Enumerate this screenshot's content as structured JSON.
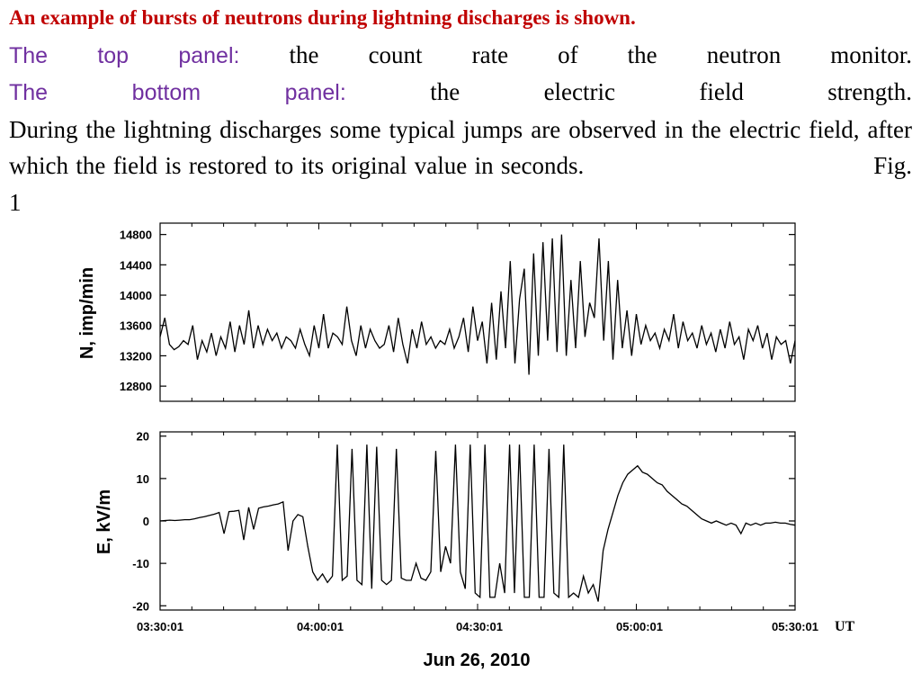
{
  "caption": {
    "line1": "An example of bursts of neutrons during lightning discharges is shown.",
    "top_label": "The top panel:",
    "top_text": "the count rate of the neutron monitor.",
    "bottom_label": "The bottom panel:",
    "bottom_text": "the electric field strength.",
    "body": "During the lightning discharges some typical jumps are observed in the electric field, after which the field is restored to its original value in seconds.",
    "fig_label": "Fig. 1"
  },
  "colors": {
    "heading": "#c00000",
    "panel_label": "#7030a0",
    "line": "#000000"
  },
  "chart_data": [
    {
      "type": "line",
      "ylabel": "N, imp/min",
      "ylim": [
        12600,
        14950
      ],
      "yticks": [
        12800,
        13200,
        13600,
        14000,
        14400,
        14800
      ],
      "x_range": [
        "03:30:01",
        "05:33:00"
      ],
      "series": [
        {
          "values": [
            13450,
            13700,
            13350,
            13280,
            13320,
            13400,
            13350,
            13600,
            13150,
            13400,
            13250,
            13500,
            13200,
            13450,
            13300,
            13650,
            13250,
            13600,
            13350,
            13800,
            13300,
            13600,
            13350,
            13550,
            13400,
            13500,
            13300,
            13450,
            13400,
            13300,
            13550,
            13350,
            13200,
            13600,
            13300,
            13750,
            13300,
            13500,
            13450,
            13350,
            13850,
            13400,
            13200,
            13600,
            13300,
            13550,
            13400,
            13300,
            13350,
            13600,
            13250,
            13700,
            13350,
            13100,
            13550,
            13300,
            13650,
            13350,
            13450,
            13300,
            13400,
            13350,
            13550,
            13300,
            13450,
            13700,
            13250,
            13850,
            13400,
            13650,
            13100,
            13900,
            13150,
            14050,
            13300,
            14450,
            13100,
            13950,
            14350,
            12950,
            14550,
            13200,
            14700,
            13400,
            14750,
            13250,
            14800,
            13200,
            14200,
            13300,
            14450,
            13450,
            13900,
            13700,
            14750,
            13400,
            14450,
            13150,
            14200,
            13300,
            13800,
            13200,
            13750,
            13350,
            13600,
            13400,
            13500,
            13300,
            13550,
            13400,
            13750,
            13300,
            13650,
            13400,
            13500,
            13300,
            13600,
            13350,
            13500,
            13250,
            13550,
            13300,
            13650,
            13350,
            13450,
            13150,
            13550,
            13400,
            13600,
            13300,
            13500,
            13150,
            13450,
            13350,
            13400,
            13100,
            13400
          ]
        }
      ]
    },
    {
      "type": "line",
      "ylabel": "E, kV/m",
      "ylim": [
        -21,
        21
      ],
      "yticks": [
        -20,
        -10,
        0,
        10,
        20
      ],
      "xticks": [
        "03:30:01",
        "04:00:01",
        "04:30:01",
        "05:00:01",
        "05:30:01"
      ],
      "xunit": "UT",
      "xlabel": "Jun 26, 2010",
      "series": [
        {
          "values": [
            0.0,
            0.1,
            0.2,
            0.1,
            0.2,
            0.3,
            0.3,
            0.5,
            0.8,
            1.0,
            1.3,
            1.6,
            2.0,
            -3.0,
            2.2,
            2.3,
            2.5,
            -4.5,
            3.2,
            -2.0,
            3.0,
            3.3,
            3.5,
            3.8,
            4.0,
            4.5,
            -7.0,
            0.0,
            1.5,
            1.0,
            -6.0,
            -12.0,
            -14.0,
            -12.5,
            -14.5,
            -13.0,
            18.0,
            -14.0,
            -13.0,
            17.0,
            -14.0,
            -15.0,
            18.0,
            -16.0,
            17.5,
            -14.0,
            -15.0,
            -14.0,
            17.0,
            -13.5,
            -14.0,
            -14.0,
            -10.0,
            -13.5,
            -14.0,
            -12.0,
            16.5,
            -12.0,
            -6.0,
            -10.0,
            18.0,
            -12.0,
            -16.0,
            18.0,
            -17.0,
            -18.0,
            18.0,
            -18.0,
            -18.0,
            -10.0,
            -17.0,
            18.0,
            -17.0,
            18.0,
            -18.0,
            -18.0,
            18.0,
            -18.0,
            -18.0,
            17.0,
            -17.0,
            -18.0,
            18.0,
            -18.0,
            -17.0,
            -18.0,
            -13.0,
            -17.0,
            -15.0,
            -19.0,
            -7.0,
            -2.0,
            2.0,
            6.0,
            9.0,
            11.0,
            12.0,
            13.0,
            11.5,
            11.0,
            10.0,
            9.0,
            8.5,
            7.0,
            6.0,
            5.0,
            4.0,
            3.5,
            2.5,
            1.5,
            0.5,
            0.0,
            -0.5,
            0.0,
            -0.5,
            -1.0,
            -0.5,
            -1.0,
            -3.0,
            -0.5,
            -1.0,
            -0.5,
            -1.0,
            -0.5,
            -0.5,
            -0.3,
            -0.5,
            -0.5,
            -0.8,
            -1.0
          ]
        }
      ]
    }
  ],
  "ut_label": "UT"
}
